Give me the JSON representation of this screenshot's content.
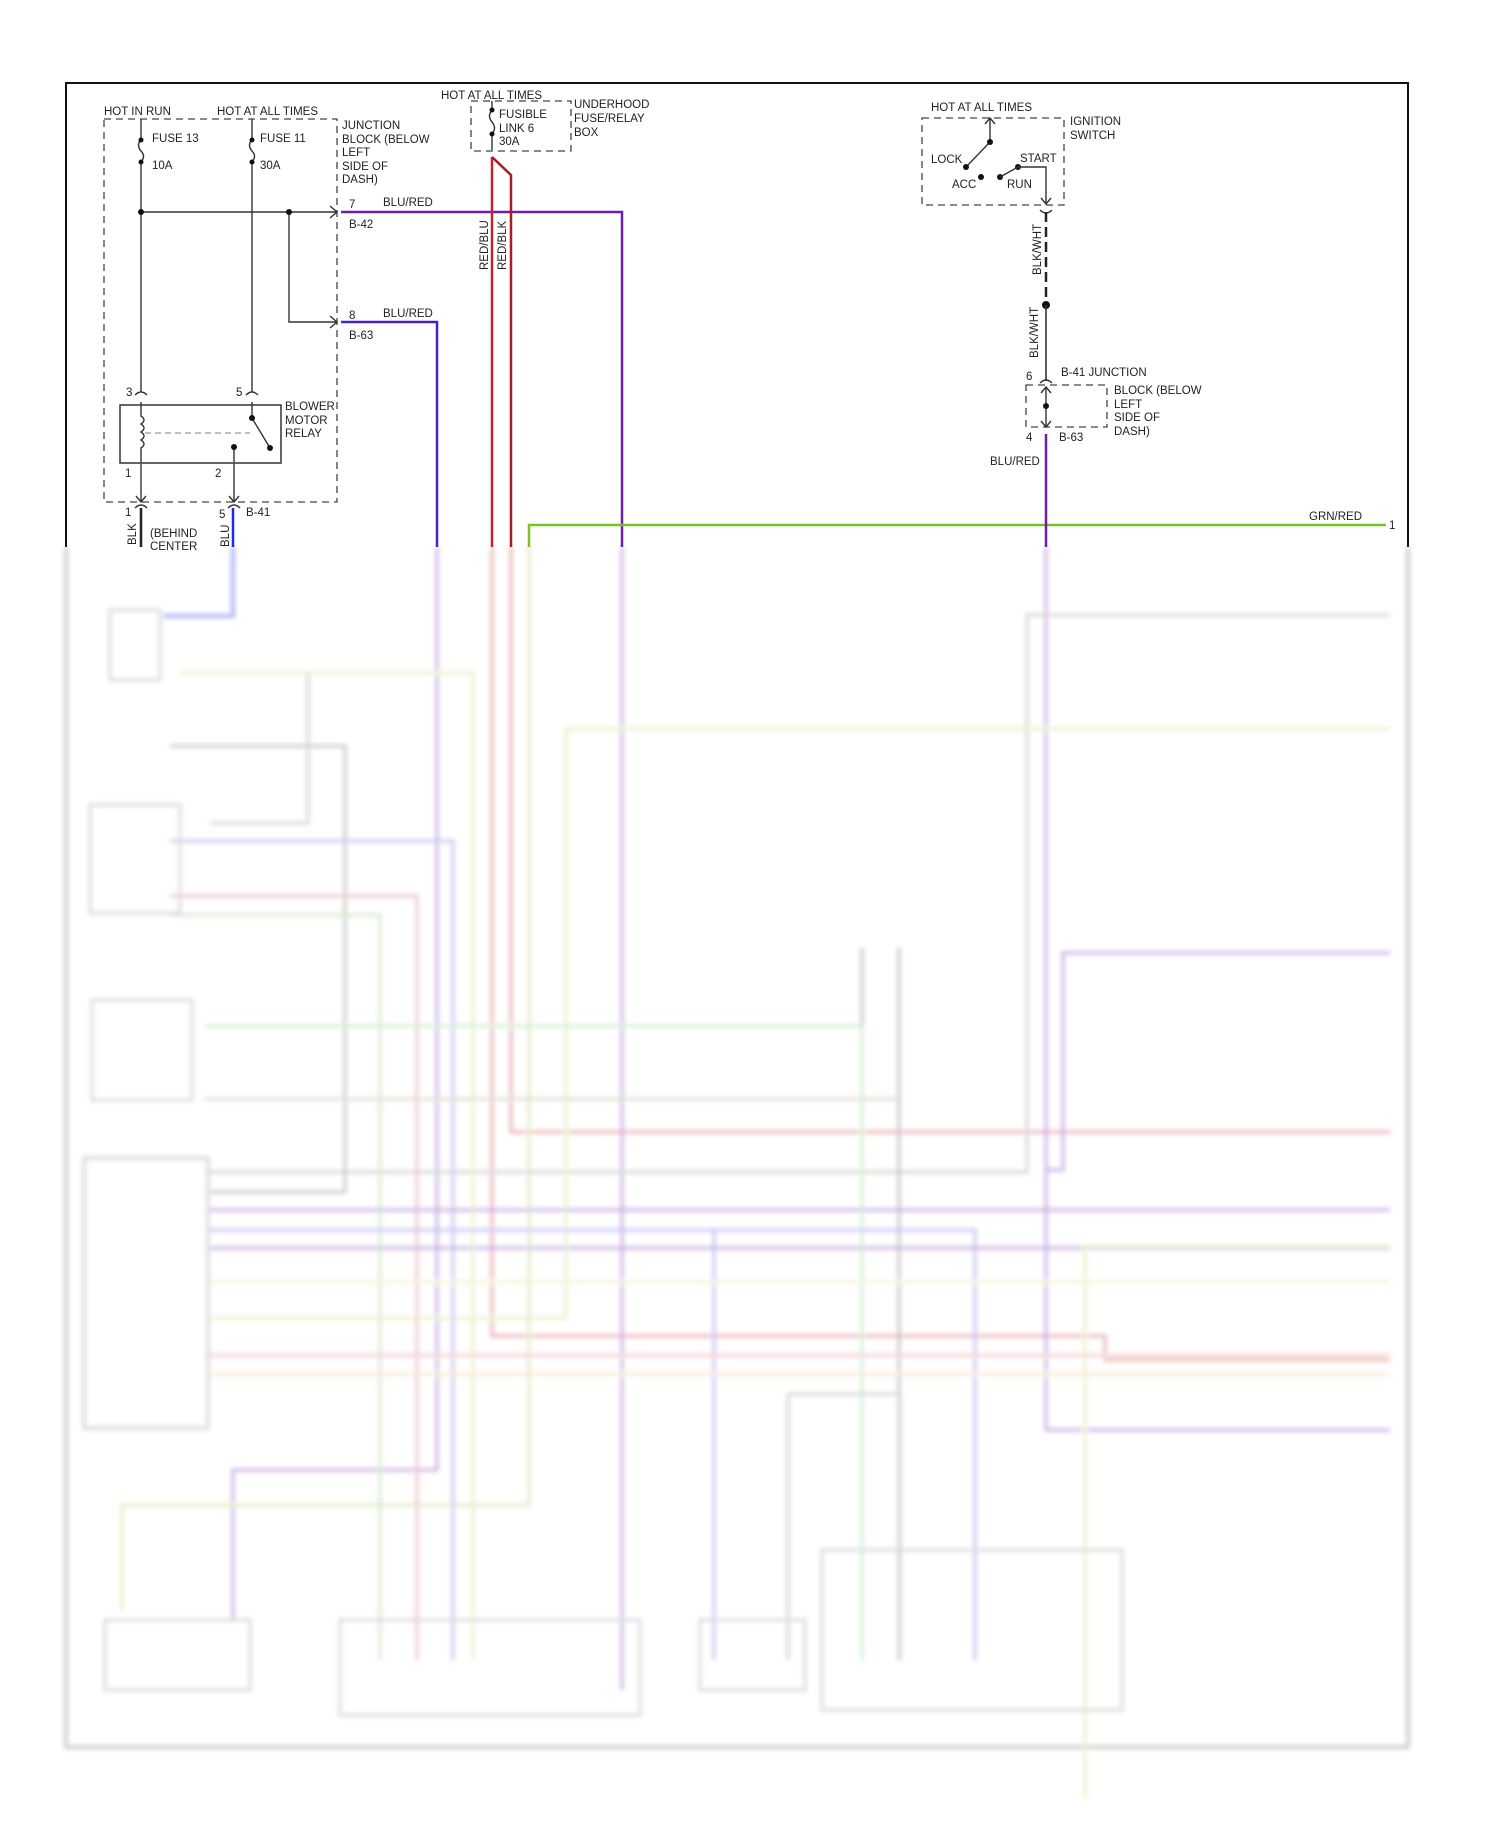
{
  "colors": {
    "blu_red": "#6a1fb0",
    "red": "#c0262d",
    "grn_red": "#7cc11f",
    "blu": "#1a2fe0",
    "wire_black": "#333333"
  },
  "junction_block": {
    "hot_in_run": "HOT IN RUN",
    "hot_at_all_times": "HOT AT ALL TIMES",
    "fuse13": "FUSE 13",
    "fuse13_rating": "10A",
    "fuse11": "FUSE 11",
    "fuse11_rating": "30A",
    "label": [
      "JUNCTION",
      "BLOCK (BELOW",
      "LEFT",
      "SIDE OF",
      "DASH)"
    ],
    "pin7": "7",
    "conn_b42": "B-42",
    "wire7": "BLU/RED",
    "pin8": "8",
    "conn_b63": "B-63",
    "wire8": "BLU/RED"
  },
  "relay": {
    "label": [
      "BLOWER",
      "MOTOR",
      "RELAY"
    ],
    "pin3": "3",
    "pin5": "5",
    "pin1": "1",
    "pin2": "2",
    "lower_pin1": "1",
    "lower_pin5": "5",
    "conn_b41": "B-41",
    "wire_blk": "BLK",
    "wire_blu": "BLU",
    "location": [
      "(BEHIND",
      "CENTER"
    ]
  },
  "underhood": {
    "hot": "HOT AT ALL TIMES",
    "link": [
      "FUSIBLE",
      "LINK 6",
      "30A"
    ],
    "label": [
      "UNDERHOOD",
      "FUSE/RELAY",
      "BOX"
    ],
    "wire_a": "RED/BLU",
    "wire_b": "RED/BLK"
  },
  "ignition": {
    "hot": "HOT AT ALL TIMES",
    "label": [
      "IGNITION",
      "SWITCH"
    ],
    "lock": "LOCK",
    "start": "START",
    "acc": "ACC",
    "run": "RUN",
    "wire1": "BLK/WHT",
    "wire2": "BLK/WHT"
  },
  "b41_junction": {
    "title": "B-41 JUNCTION",
    "label": [
      "BLOCK (BELOW",
      "LEFT",
      "SIDE OF",
      "DASH)"
    ],
    "pin6": "6",
    "pin4": "4",
    "conn": "B-63",
    "wire": "BLU/RED"
  },
  "green_wire": {
    "label": "GRN/RED",
    "pin": "1"
  }
}
